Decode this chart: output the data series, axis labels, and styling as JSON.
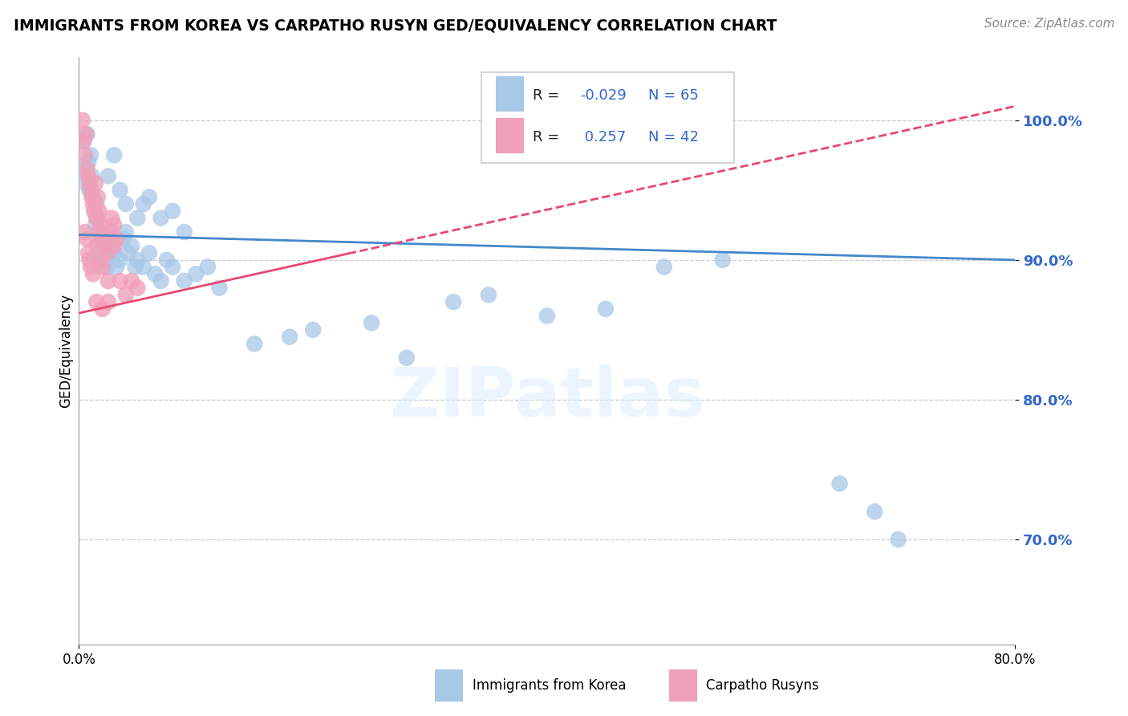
{
  "title": "IMMIGRANTS FROM KOREA VS CARPATHO RUSYN GED/EQUIVALENCY CORRELATION CHART",
  "source": "Source: ZipAtlas.com",
  "ylabel": "GED/Equivalency",
  "ytick_labels": [
    "100.0%",
    "90.0%",
    "80.0%",
    "70.0%"
  ],
  "ytick_values": [
    1.0,
    0.9,
    0.8,
    0.7
  ],
  "xmin": 0.0,
  "xmax": 0.8,
  "ymin": 0.625,
  "ymax": 1.045,
  "blue_color": "#a8c8e8",
  "pink_color": "#f0a0b8",
  "blue_line_color": "#4488cc",
  "pink_line_color": "#e84870",
  "watermark_text": "ZIPatlas",
  "blue_trend_y0": 0.918,
  "blue_trend_y1": 0.9,
  "pink_trend_x0": 0.0,
  "pink_trend_y0": 0.862,
  "pink_trend_x1": 0.8,
  "pink_trend_y1": 1.01,
  "korea_dots": [
    [
      0.004,
      0.985
    ],
    [
      0.005,
      0.965
    ],
    [
      0.006,
      0.955
    ],
    [
      0.007,
      0.99
    ],
    [
      0.008,
      0.97
    ],
    [
      0.009,
      0.95
    ],
    [
      0.01,
      0.975
    ],
    [
      0.011,
      0.96
    ],
    [
      0.012,
      0.945
    ],
    [
      0.013,
      0.935
    ],
    [
      0.014,
      0.925
    ],
    [
      0.015,
      0.94
    ],
    [
      0.016,
      0.93
    ],
    [
      0.017,
      0.92
    ],
    [
      0.018,
      0.915
    ],
    [
      0.019,
      0.905
    ],
    [
      0.02,
      0.91
    ],
    [
      0.022,
      0.9
    ],
    [
      0.024,
      0.895
    ],
    [
      0.026,
      0.91
    ],
    [
      0.028,
      0.92
    ],
    [
      0.03,
      0.905
    ],
    [
      0.032,
      0.895
    ],
    [
      0.035,
      0.9
    ],
    [
      0.038,
      0.915
    ],
    [
      0.04,
      0.92
    ],
    [
      0.042,
      0.905
    ],
    [
      0.045,
      0.91
    ],
    [
      0.048,
      0.895
    ],
    [
      0.05,
      0.9
    ],
    [
      0.055,
      0.895
    ],
    [
      0.06,
      0.905
    ],
    [
      0.065,
      0.89
    ],
    [
      0.07,
      0.885
    ],
    [
      0.075,
      0.9
    ],
    [
      0.08,
      0.895
    ],
    [
      0.09,
      0.885
    ],
    [
      0.1,
      0.89
    ],
    [
      0.11,
      0.895
    ],
    [
      0.12,
      0.88
    ],
    [
      0.025,
      0.96
    ],
    [
      0.03,
      0.975
    ],
    [
      0.035,
      0.95
    ],
    [
      0.04,
      0.94
    ],
    [
      0.05,
      0.93
    ],
    [
      0.055,
      0.94
    ],
    [
      0.06,
      0.945
    ],
    [
      0.07,
      0.93
    ],
    [
      0.08,
      0.935
    ],
    [
      0.09,
      0.92
    ],
    [
      0.15,
      0.84
    ],
    [
      0.18,
      0.845
    ],
    [
      0.2,
      0.85
    ],
    [
      0.25,
      0.855
    ],
    [
      0.28,
      0.83
    ],
    [
      0.32,
      0.87
    ],
    [
      0.35,
      0.875
    ],
    [
      0.4,
      0.86
    ],
    [
      0.45,
      0.865
    ],
    [
      0.5,
      0.895
    ],
    [
      0.55,
      0.9
    ],
    [
      0.65,
      0.74
    ],
    [
      0.68,
      0.72
    ],
    [
      0.7,
      0.7
    ]
  ],
  "rusyn_dots": [
    [
      0.003,
      1.0
    ],
    [
      0.004,
      0.985
    ],
    [
      0.005,
      0.975
    ],
    [
      0.006,
      0.99
    ],
    [
      0.007,
      0.965
    ],
    [
      0.008,
      0.96
    ],
    [
      0.009,
      0.955
    ],
    [
      0.01,
      0.95
    ],
    [
      0.011,
      0.945
    ],
    [
      0.012,
      0.94
    ],
    [
      0.013,
      0.935
    ],
    [
      0.014,
      0.955
    ],
    [
      0.015,
      0.93
    ],
    [
      0.016,
      0.945
    ],
    [
      0.017,
      0.935
    ],
    [
      0.018,
      0.925
    ],
    [
      0.019,
      0.92
    ],
    [
      0.02,
      0.915
    ],
    [
      0.022,
      0.91
    ],
    [
      0.024,
      0.905
    ],
    [
      0.026,
      0.92
    ],
    [
      0.028,
      0.93
    ],
    [
      0.03,
      0.925
    ],
    [
      0.032,
      0.915
    ],
    [
      0.005,
      0.92
    ],
    [
      0.007,
      0.915
    ],
    [
      0.008,
      0.905
    ],
    [
      0.009,
      0.9
    ],
    [
      0.01,
      0.895
    ],
    [
      0.012,
      0.89
    ],
    [
      0.015,
      0.91
    ],
    [
      0.018,
      0.9
    ],
    [
      0.02,
      0.895
    ],
    [
      0.025,
      0.885
    ],
    [
      0.03,
      0.91
    ],
    [
      0.015,
      0.87
    ],
    [
      0.02,
      0.865
    ],
    [
      0.025,
      0.87
    ],
    [
      0.035,
      0.885
    ],
    [
      0.04,
      0.875
    ],
    [
      0.045,
      0.885
    ],
    [
      0.05,
      0.88
    ]
  ]
}
